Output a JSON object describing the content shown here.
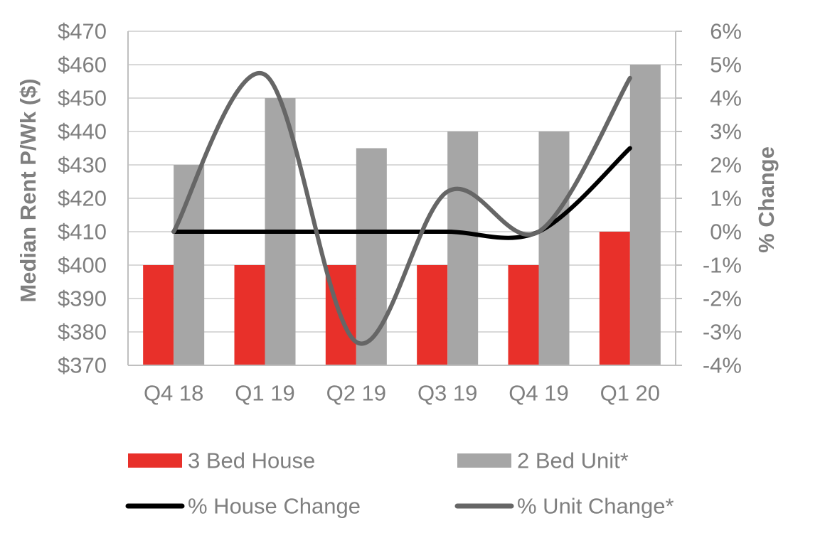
{
  "chart_data": {
    "type": "bar",
    "categories": [
      "Q4 18",
      "Q1 19",
      "Q2 19",
      "Q3 19",
      "Q4 19",
      "Q1 20"
    ],
    "series": [
      {
        "name": "3 Bed House",
        "kind": "bar",
        "axis": "left",
        "color": "#e8302a",
        "values": [
          400,
          400,
          400,
          400,
          400,
          410
        ]
      },
      {
        "name": "2 Bed Unit*",
        "kind": "bar",
        "axis": "left",
        "color": "#a6a6a6",
        "values": [
          430,
          450,
          435,
          440,
          440,
          460
        ]
      },
      {
        "name": "% House Change",
        "kind": "line",
        "axis": "right",
        "color": "#000000",
        "values": [
          0.0,
          0.0,
          0.0,
          0.0,
          0.0,
          2.5
        ]
      },
      {
        "name": "% Unit Change*",
        "kind": "line",
        "axis": "right",
        "color": "#666666",
        "values": [
          0.0,
          4.7,
          -3.3,
          1.2,
          0.0,
          4.6
        ]
      }
    ],
    "ylabel": "Median Rent P/Wk ($)",
    "y2label": "% Change",
    "ylim": [
      370,
      470
    ],
    "y2lim": [
      -4,
      6
    ],
    "yticks": [
      "$370",
      "$380",
      "$390",
      "$400",
      "$410",
      "$420",
      "$430",
      "$440",
      "$450",
      "$460",
      "$470"
    ],
    "y2ticks": [
      "-4%",
      "-3%",
      "-2%",
      "-1%",
      "0%",
      "1%",
      "2%",
      "3%",
      "4%",
      "5%",
      "6%"
    ],
    "grid": true,
    "legend_position": "bottom"
  }
}
